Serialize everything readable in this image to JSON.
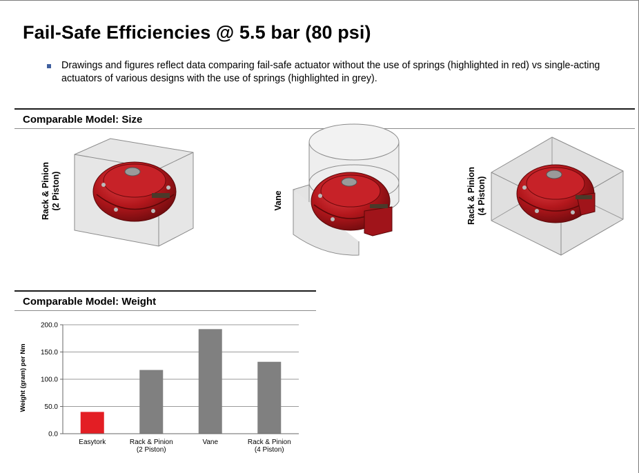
{
  "title": "Fail-Safe Efficiencies @ 5.5 bar (80 psi)",
  "bullet_text": "Drawings and figures reflect data comparing fail-safe actuator without the use of springs (highlighted in red) vs single-acting actuators of various designs with the use of springs (highlighted in grey).",
  "size_section": {
    "heading": "Comparable Model: Size",
    "models": [
      {
        "label_line1": "Rack & Pinion",
        "label_line2": "(2 Piston)"
      },
      {
        "label_line1": "Vane",
        "label_line2": ""
      },
      {
        "label_line1": "Rack & Pinion",
        "label_line2": "(4 Piston)"
      }
    ]
  },
  "weight_section": {
    "heading": "Comparable Model: Weight"
  },
  "colors": {
    "highlight": "#e31e24",
    "grey_bar": "#808080",
    "actuator_red": "#b3171c"
  },
  "chart_data": {
    "type": "bar",
    "title": "",
    "xlabel": "",
    "ylabel": "Weight (gram) per Nm",
    "categories": [
      [
        "Easytork"
      ],
      [
        "Rack & Pinion",
        "(2 Piston)"
      ],
      [
        "Vane"
      ],
      [
        "Rack & Pinion",
        "(4 Piston)"
      ]
    ],
    "values": [
      40,
      117,
      192,
      132
    ],
    "bar_colors": [
      "#e31e24",
      "#808080",
      "#808080",
      "#808080"
    ],
    "ylim": [
      0,
      200
    ],
    "yticks": [
      "0.0",
      "50.0",
      "100.0",
      "150.0",
      "200.0"
    ],
    "ytick_values": [
      0,
      50,
      100,
      150,
      200
    ],
    "grid": true,
    "legend": "none"
  }
}
